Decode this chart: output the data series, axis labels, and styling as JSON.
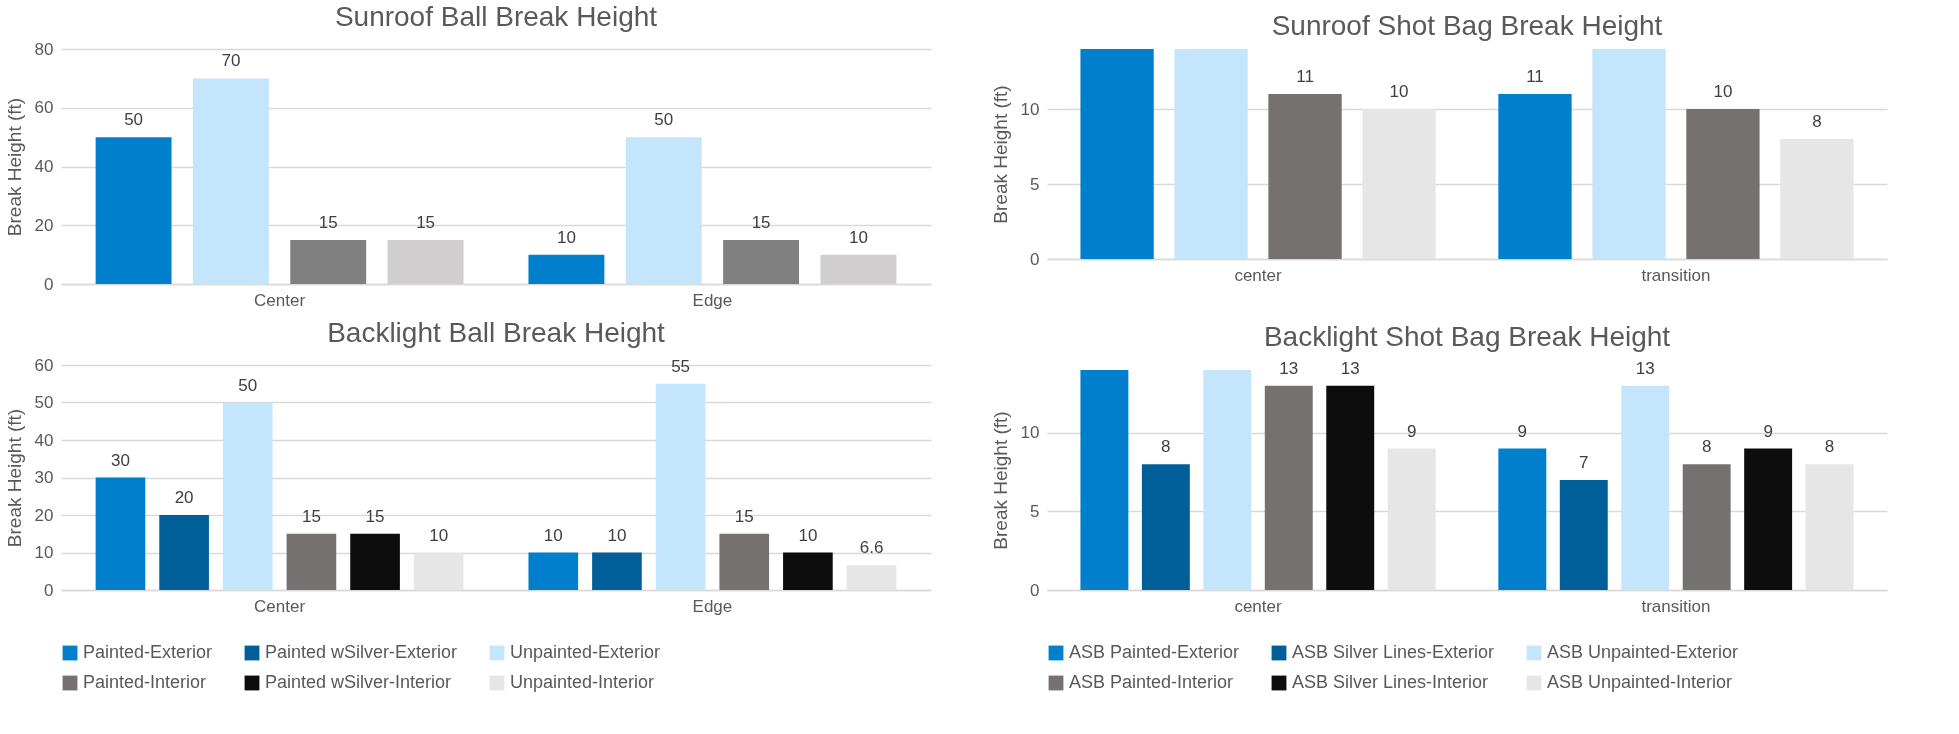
{
  "chart_data": [
    {
      "type": "bar",
      "title": "Sunroof Ball Break Height",
      "ylabel": "Break Height (ft)",
      "categories": [
        "Center",
        "Edge"
      ],
      "ylim": [
        0,
        80
      ],
      "yticks": [
        0,
        20,
        40,
        60,
        80
      ],
      "grid": "y",
      "series": [
        {
          "color": "#0080cc",
          "values": [
            50,
            10
          ],
          "value_labels": [
            "50",
            "10"
          ]
        },
        {
          "color": "#c3e6fc",
          "values": [
            70,
            50
          ],
          "value_labels": [
            "70",
            "50"
          ]
        },
        {
          "color": "#808080",
          "values": [
            15,
            15
          ],
          "value_labels": [
            "15",
            "15"
          ]
        },
        {
          "color": "#d0cecf",
          "values": [
            15,
            10
          ],
          "value_labels": [
            "15",
            "10"
          ]
        }
      ]
    },
    {
      "type": "bar",
      "title": "Backlight Ball Break Height",
      "ylabel": "Break Height (ft)",
      "categories": [
        "Center",
        "Edge"
      ],
      "ylim": [
        0,
        60
      ],
      "yticks": [
        0,
        10,
        20,
        30,
        40,
        50,
        60
      ],
      "grid": "y",
      "legend": "bottom",
      "series": [
        {
          "name": "Painted-Exterior",
          "color": "#0080cc",
          "values": [
            30,
            10
          ],
          "value_labels": [
            "30",
            "10"
          ]
        },
        {
          "name": "Painted wSilver-Exterior",
          "color": "#005f99",
          "values": [
            20,
            10
          ],
          "value_labels": [
            "20",
            "10"
          ]
        },
        {
          "name": "Unpainted-Exterior",
          "color": "#c3e6fc",
          "values": [
            50,
            55
          ],
          "value_labels": [
            "50",
            "55"
          ]
        },
        {
          "name": "Painted-Interior",
          "color": "#767171",
          "values": [
            15,
            15
          ],
          "value_labels": [
            "15",
            "15"
          ]
        },
        {
          "name": "Painted wSilver-Interior",
          "color": "#0d0d0d",
          "values": [
            15,
            10
          ],
          "value_labels": [
            "15",
            "10"
          ]
        },
        {
          "name": "Unpainted-Interior",
          "color": "#e6e6e6",
          "values": [
            10,
            6.6
          ],
          "value_labels": [
            "10",
            "6.6"
          ]
        }
      ]
    },
    {
      "type": "bar",
      "title": "Sunroof Shot Bag Break Height",
      "ylabel": "Break Height (ft)",
      "categories": [
        "center",
        "transition"
      ],
      "ylim": [
        0,
        14
      ],
      "yticks": [
        0,
        5,
        10
      ],
      "grid": "y",
      "series": [
        {
          "color": "#0080cc",
          "values": [
            14,
            11
          ],
          "value_labels": [
            null,
            "11"
          ]
        },
        {
          "color": "#c3e6fc",
          "values": [
            14,
            14
          ],
          "value_labels": [
            null,
            null
          ]
        },
        {
          "color": "#767171",
          "values": [
            11,
            10
          ],
          "value_labels": [
            "11",
            "10"
          ]
        },
        {
          "color": "#e6e6e6",
          "values": [
            10,
            8
          ],
          "value_labels": [
            "10",
            "8"
          ]
        }
      ]
    },
    {
      "type": "bar",
      "title": "Backlight Shot Bag Break Height",
      "ylabel": "Break Height (ft)",
      "categories": [
        "center",
        "transition"
      ],
      "ylim": [
        0,
        14
      ],
      "yticks": [
        0,
        5,
        10
      ],
      "grid": "y",
      "legend": "bottom",
      "series": [
        {
          "name": "ASB Painted-Exterior",
          "color": "#0080cc",
          "values": [
            14,
            9
          ],
          "value_labels": [
            null,
            "9"
          ]
        },
        {
          "name": "ASB Silver Lines-Exterior",
          "color": "#005f99",
          "values": [
            8,
            7
          ],
          "value_labels": [
            "8",
            "7"
          ]
        },
        {
          "name": "ASB Unpainted-Exterior",
          "color": "#c3e6fc",
          "values": [
            14,
            13
          ],
          "value_labels": [
            null,
            "13"
          ]
        },
        {
          "name": "ASB Painted-Interior",
          "color": "#767171",
          "values": [
            13,
            8
          ],
          "value_labels": [
            "13",
            "8"
          ]
        },
        {
          "name": "ASB Silver Lines-Interior",
          "color": "#0d0d0d",
          "values": [
            13,
            9
          ],
          "value_labels": [
            "13",
            "9"
          ]
        },
        {
          "name": "ASB Unpainted-Interior",
          "color": "#e6e6e6",
          "values": [
            9,
            8
          ],
          "value_labels": [
            "9",
            "8"
          ]
        }
      ]
    }
  ]
}
